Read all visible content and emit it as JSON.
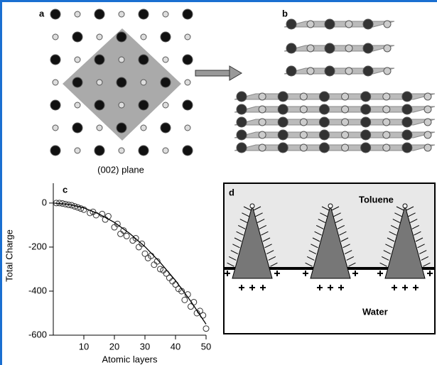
{
  "panel_a": {
    "label": "a",
    "caption": "(002) plane"
  },
  "panel_b": {
    "label": "b"
  },
  "chart_data": {
    "type": "scatter",
    "panel_label": "c",
    "xlabel": "Atomic layers",
    "ylabel": "Total Charge",
    "x": [
      1,
      2,
      3,
      4,
      5,
      6,
      7,
      8,
      9,
      10,
      12,
      13,
      14,
      16,
      17,
      18,
      20,
      21,
      22,
      23,
      24,
      26,
      27,
      28,
      29,
      30,
      31,
      32,
      33,
      34,
      35,
      36,
      37,
      38,
      39,
      40,
      41,
      42,
      43,
      44,
      45,
      46,
      47,
      48,
      49,
      50
    ],
    "values": [
      0,
      0,
      -2,
      -5,
      -8,
      -10,
      -15,
      -20,
      -25,
      -30,
      -45,
      -40,
      -55,
      -50,
      -75,
      -60,
      -110,
      -95,
      -140,
      -125,
      -150,
      -170,
      -160,
      -200,
      -185,
      -230,
      -250,
      -240,
      -280,
      -265,
      -300,
      -305,
      -320,
      -340,
      -355,
      -370,
      -390,
      -400,
      -440,
      -415,
      -470,
      -450,
      -500,
      -490,
      -510,
      -570
    ],
    "fit": {
      "x": [
        0,
        5,
        10,
        15,
        20,
        25,
        30,
        35,
        40,
        45,
        50
      ],
      "values": [
        0,
        -6,
        -22,
        -50,
        -88,
        -138,
        -198,
        -270,
        -352,
        -446,
        -550
      ]
    },
    "xlim": [
      0,
      50
    ],
    "ylim": [
      -600,
      90
    ],
    "xticks": [
      10,
      20,
      30,
      40,
      50
    ],
    "yticks": [
      0,
      -200,
      -400,
      -600
    ]
  },
  "panel_d": {
    "label": "d",
    "top_phase": "Toluene",
    "bottom_phase": "Water"
  }
}
